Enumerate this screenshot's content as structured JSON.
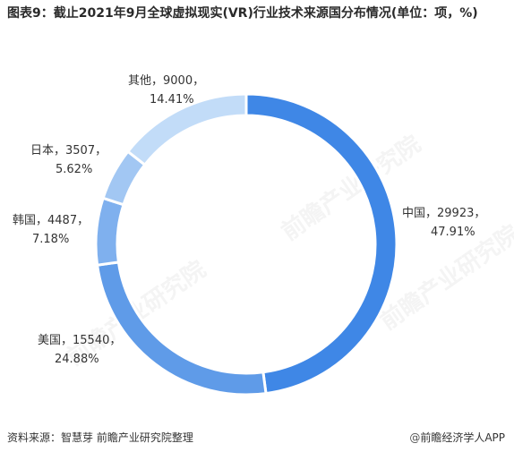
{
  "chart_data": {
    "type": "pie",
    "title": "图表9：截止2021年9月全球虚拟现实(VR)行业技术来源国分布情况(单位：项，%)",
    "slices": [
      {
        "label": "中国",
        "value": 29923,
        "percent": "47.91%",
        "color": "#3f87e6"
      },
      {
        "label": "美国",
        "value": 15540,
        "percent": "24.88%",
        "color": "#5f9be8"
      },
      {
        "label": "韩国",
        "value": 4487,
        "percent": "7.18%",
        "color": "#7fb0ee"
      },
      {
        "label": "日本",
        "value": 3507,
        "percent": "5.62%",
        "color": "#a2c7f3"
      },
      {
        "label": "其他",
        "value": 9000,
        "percent": "14.41%",
        "color": "#c2dcf8"
      }
    ],
    "labels": {
      "china_line1": "中国，29923，",
      "china_line2": "47.91%",
      "usa_line1": "美国，15540，",
      "usa_line2": "24.88%",
      "korea_line1": "韩国，4487，",
      "korea_line2": "7.18%",
      "japan_line1": "日本，3507，",
      "japan_line2": "5.62%",
      "other_line1": "其他，9000，",
      "other_line2": "14.41%"
    }
  },
  "footer": {
    "source": "资料来源：智慧芽 前瞻产业研究院整理",
    "brand_icon": "@",
    "brand": "前瞻经济学人APP"
  },
  "watermark_text": "前瞻产业研究院"
}
